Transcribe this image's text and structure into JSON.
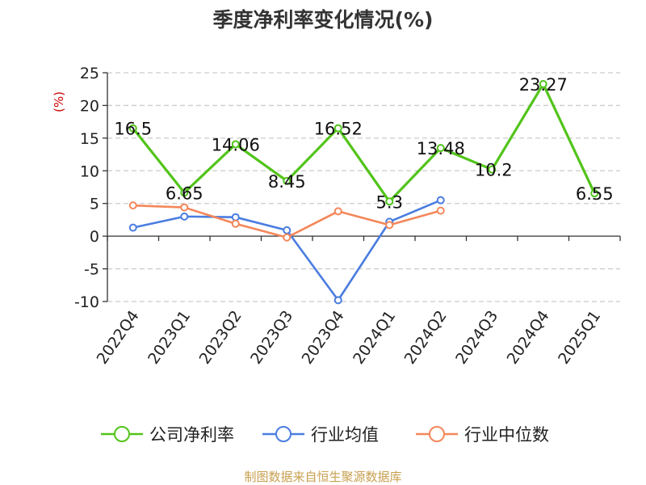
{
  "chart_data": {
    "type": "line",
    "title": "季度净利率变化情况(%)",
    "ylabel": "(%)",
    "ylabel_color": "#cc0000",
    "categories": [
      "2022Q4",
      "2023Q1",
      "2023Q2",
      "2023Q3",
      "2023Q4",
      "2024Q1",
      "2024Q2",
      "2024Q3",
      "2024Q4",
      "2025Q1"
    ],
    "ylim": [
      -10,
      25
    ],
    "yticks": [
      -10,
      -5,
      0,
      5,
      10,
      15,
      20,
      25
    ],
    "ytick_labels": [
      "-10",
      "-5",
      "0",
      "5",
      "10",
      "15",
      "20",
      "25"
    ],
    "grid": true,
    "legend_position": "bottom",
    "series": [
      {
        "name": "公司净利率",
        "color": "#52c41a",
        "values": [
          16.5,
          6.65,
          14.06,
          8.45,
          16.52,
          5.3,
          13.48,
          10.2,
          23.27,
          6.55
        ],
        "labels": [
          "16.5",
          "6.65",
          "14.06",
          "8.45",
          "16.52",
          "5.3",
          "13.48",
          "10.2",
          "23.27",
          "6.55"
        ]
      },
      {
        "name": "行业均值",
        "color": "#4a7de0",
        "values": [
          1.3,
          3.0,
          2.9,
          0.9,
          -9.8,
          2.2,
          5.5,
          null,
          null,
          null
        ]
      },
      {
        "name": "行业中位数",
        "color": "#f4875a",
        "values": [
          4.7,
          4.4,
          1.9,
          -0.2,
          3.8,
          1.7,
          3.9,
          null,
          null,
          null
        ]
      }
    ]
  },
  "footer": {
    "source": "制图数据来自恒生聚源数据库",
    "source_color": "#c8a050"
  }
}
